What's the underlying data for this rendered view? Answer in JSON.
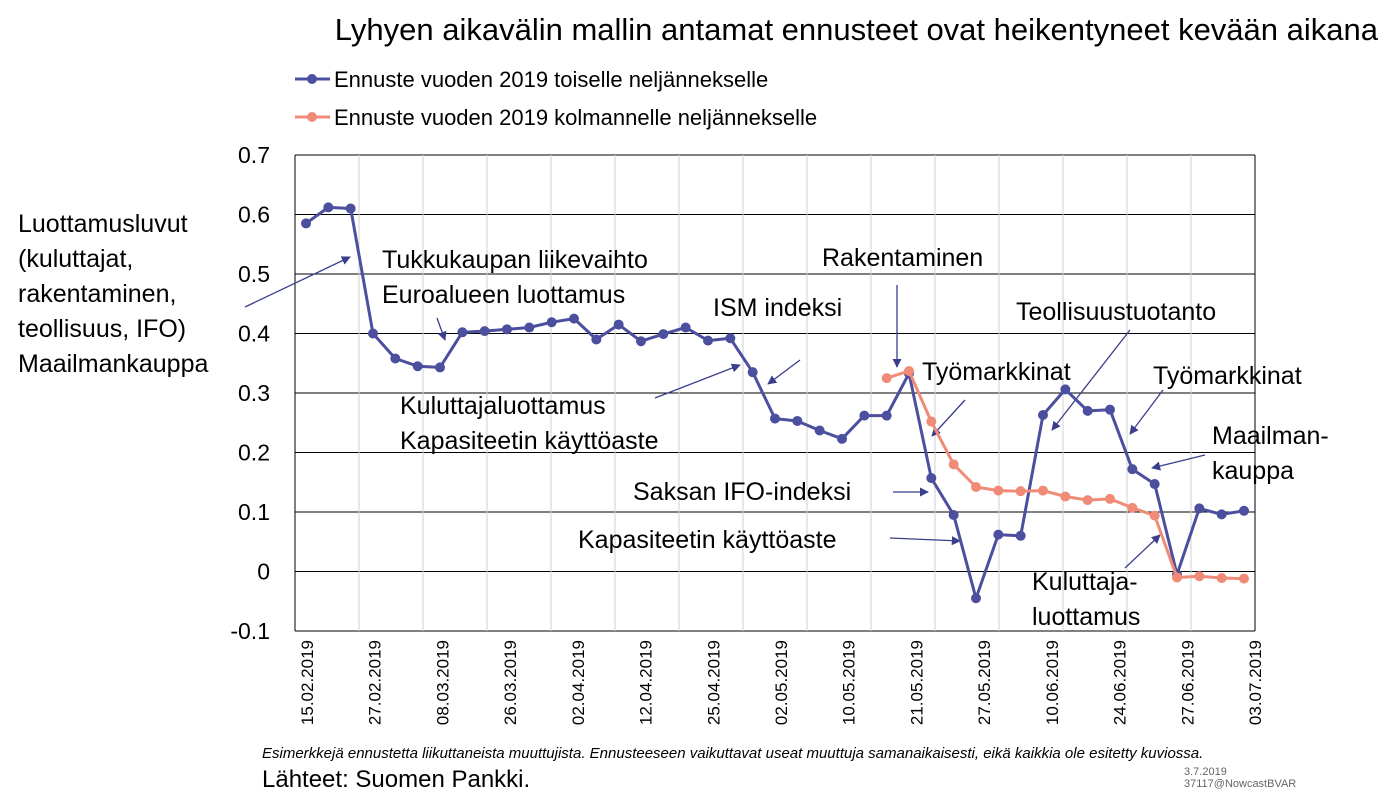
{
  "chart_data": {
    "type": "line",
    "title": "Lyhyen aikavälin mallin antamat ennusteet ovat heikentyneet kevään aikana",
    "xlabel": "",
    "ylabel": "",
    "ylim": [
      -0.1,
      0.7
    ],
    "yticks": [
      "0.7",
      "0.6",
      "0.5",
      "0.4",
      "0.3",
      "0.2",
      "0.1",
      "0",
      "-0.1"
    ],
    "xticks": [
      "15.02.2019",
      "27.02.2019",
      "08.03.2019",
      "26.03.2019",
      "02.04.2019",
      "12.04.2019",
      "25.04.2019",
      "02.05.2019",
      "10.05.2019",
      "21.05.2019",
      "27.05.2019",
      "10.06.2019",
      "24.06.2019",
      "27.06.2019",
      "03.07.2019"
    ],
    "grid": true,
    "legend_position": "top-left",
    "series": [
      {
        "name": "Ennuste vuoden 2019 toiselle neljännekselle",
        "color": "#4b4f9e",
        "values": [
          0.585,
          0.612,
          0.61,
          0.4,
          0.358,
          0.345,
          0.343,
          0.402,
          0.404,
          0.407,
          0.41,
          0.419,
          0.425,
          0.39,
          0.415,
          0.387,
          0.399,
          0.41,
          0.388,
          0.392,
          0.335,
          0.257,
          0.253,
          0.237,
          0.223,
          0.262,
          0.262,
          0.333,
          0.157,
          0.095,
          -0.045,
          0.062,
          0.06,
          0.263,
          0.306,
          0.27,
          0.272,
          0.172,
          0.147,
          -0.005,
          0.106,
          0.096,
          0.102
        ]
      },
      {
        "name": "Ennuste vuoden 2019 kolmannelle neljännekselle",
        "color": "#f08b78",
        "start_index": 26,
        "values": [
          0.325,
          0.337,
          0.252,
          0.18,
          0.142,
          0.136,
          0.135,
          0.136,
          0.126,
          0.12,
          0.122,
          0.107,
          0.094,
          -0.01,
          -0.008,
          -0.011,
          -0.012
        ]
      }
    ],
    "annotations": [
      {
        "id": "luottamusluvut",
        "lines": [
          "Luottamusluvut",
          "(kuluttajat,",
          "rakentaminen,",
          "teollisuus, IFO)",
          "Maailmankauppa"
        ]
      },
      {
        "id": "tukkukauppa",
        "lines": [
          "Tukkukaupan liikevaihto",
          "Euroalueen luottamus"
        ]
      },
      {
        "id": "ism",
        "lines": [
          "ISM indeksi"
        ]
      },
      {
        "id": "rakentaminen",
        "lines": [
          "Rakentaminen"
        ]
      },
      {
        "id": "teollisuustuotanto",
        "lines": [
          "Teollisuustuotanto"
        ]
      },
      {
        "id": "tyomarkkinat1",
        "lines": [
          "Työmarkkinat"
        ]
      },
      {
        "id": "tyomarkkinat2",
        "lines": [
          "Työmarkkinat"
        ]
      },
      {
        "id": "maailmankauppa",
        "lines": [
          "Maailman-",
          "kauppa"
        ]
      },
      {
        "id": "kuluttajaluottamus-kapasiteetti",
        "lines": [
          "Kuluttajaluottamus",
          "Kapasiteetin käyttöaste"
        ]
      },
      {
        "id": "saksan-ifo",
        "lines": [
          "Saksan IFO-indeksi"
        ]
      },
      {
        "id": "kapasiteetti",
        "lines": [
          "Kapasiteetin käyttöaste"
        ]
      },
      {
        "id": "kuluttajaluottamus2",
        "lines": [
          "Kuluttaja-",
          "luottamus"
        ]
      }
    ]
  },
  "footnote": "Esimerkkejä ennustetta liikuttaneista muuttujista. Ennusteeseen vaikuttavat useat muuttuja samanaikaisesti, eikä kaikkia ole esitetty kuviossa.",
  "source": "Lähteet:  Suomen Pankki.",
  "stamp": {
    "date": "3.7.2019",
    "code": "37117@NowcastBVAR"
  }
}
